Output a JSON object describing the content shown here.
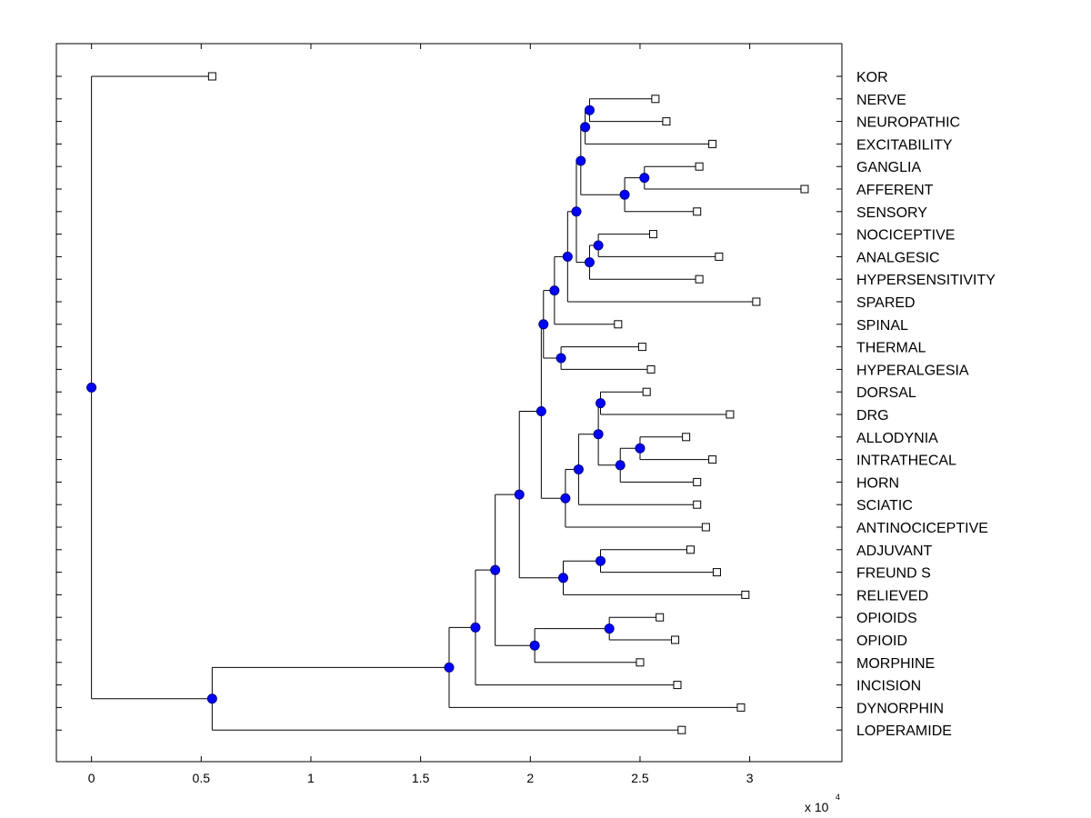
{
  "chart_data": {
    "type": "dendrogram",
    "x_scale_label": "x 10",
    "x_scale_exponent": "4",
    "x_multiplier": 10000,
    "xlim": [
      -0.16,
      3.42
    ],
    "xticks": [
      0,
      0.5,
      1,
      1.5,
      2,
      2.5,
      3
    ],
    "xtick_labels": [
      "0",
      "0.5",
      "1",
      "1.5",
      "2",
      "2.5",
      "3"
    ],
    "colors": {
      "node_fill": "#0000ff",
      "node_stroke": "#000080",
      "line": "#000000",
      "leaf_fill": "#ffffff"
    },
    "leaves": [
      {
        "label": "KOR",
        "x": 0.55
      },
      {
        "label": "NERVE",
        "x": 2.57
      },
      {
        "label": "NEUROPATHIC",
        "x": 2.62
      },
      {
        "label": "EXCITABILITY",
        "x": 2.83
      },
      {
        "label": "GANGLIA",
        "x": 2.77
      },
      {
        "label": "AFFERENT",
        "x": 3.25
      },
      {
        "label": "SENSORY",
        "x": 2.76
      },
      {
        "label": "NOCICEPTIVE",
        "x": 2.56
      },
      {
        "label": "ANALGESIC",
        "x": 2.86
      },
      {
        "label": "HYPERSENSITIVITY",
        "x": 2.77
      },
      {
        "label": "SPARED",
        "x": 3.03
      },
      {
        "label": "SPINAL",
        "x": 2.4
      },
      {
        "label": "THERMAL",
        "x": 2.51
      },
      {
        "label": "HYPERALGESIA",
        "x": 2.55
      },
      {
        "label": "DORSAL",
        "x": 2.53
      },
      {
        "label": "DRG",
        "x": 2.91
      },
      {
        "label": "ALLODYNIA",
        "x": 2.71
      },
      {
        "label": "INTRATHECAL",
        "x": 2.83
      },
      {
        "label": "HORN",
        "x": 2.76
      },
      {
        "label": "SCIATIC",
        "x": 2.76
      },
      {
        "label": "ANTINOCICEPTIVE",
        "x": 2.8
      },
      {
        "label": "ADJUVANT",
        "x": 2.73
      },
      {
        "label": "FREUND S",
        "x": 2.85
      },
      {
        "label": "RELIEVED",
        "x": 2.98
      },
      {
        "label": "OPIOIDS",
        "x": 2.59
      },
      {
        "label": "OPIOID",
        "x": 2.66
      },
      {
        "label": "MORPHINE",
        "x": 2.5
      },
      {
        "label": "INCISION",
        "x": 2.67
      },
      {
        "label": "DYNORPHIN",
        "x": 2.96
      },
      {
        "label": "LOPERAMIDE",
        "x": 2.69
      }
    ],
    "merges": [
      {
        "id": "n1",
        "x": 2.27,
        "children": [
          "NERVE",
          "NEUROPATHIC"
        ]
      },
      {
        "id": "n2",
        "x": 2.25,
        "children": [
          "n1",
          "EXCITABILITY"
        ]
      },
      {
        "id": "n3",
        "x": 2.52,
        "children": [
          "GANGLIA",
          "AFFERENT"
        ]
      },
      {
        "id": "n4",
        "x": 2.43,
        "children": [
          "n3",
          "SENSORY"
        ]
      },
      {
        "id": "n5",
        "x": 2.23,
        "children": [
          "n2",
          "n4"
        ]
      },
      {
        "id": "n6",
        "x": 2.31,
        "children": [
          "NOCICEPTIVE",
          "ANALGESIC"
        ]
      },
      {
        "id": "n7",
        "x": 2.27,
        "children": [
          "n6",
          "HYPERSENSITIVITY"
        ]
      },
      {
        "id": "n8",
        "x": 2.21,
        "children": [
          "n5",
          "n7"
        ]
      },
      {
        "id": "n9",
        "x": 2.17,
        "children": [
          "n8",
          "SPARED"
        ]
      },
      {
        "id": "n10",
        "x": 2.11,
        "children": [
          "n9",
          "SPINAL"
        ]
      },
      {
        "id": "n11",
        "x": 2.14,
        "children": [
          "THERMAL",
          "HYPERALGESIA"
        ]
      },
      {
        "id": "n12",
        "x": 2.06,
        "children": [
          "n10",
          "n11"
        ]
      },
      {
        "id": "n13",
        "x": 2.32,
        "children": [
          "DORSAL",
          "DRG"
        ]
      },
      {
        "id": "n14",
        "x": 2.5,
        "children": [
          "ALLODYNIA",
          "INTRATHECAL"
        ]
      },
      {
        "id": "n15",
        "x": 2.41,
        "children": [
          "n14",
          "HORN"
        ]
      },
      {
        "id": "n16",
        "x": 2.31,
        "children": [
          "n13",
          "n15"
        ]
      },
      {
        "id": "n17",
        "x": 2.22,
        "children": [
          "n16",
          "SCIATIC"
        ]
      },
      {
        "id": "n18",
        "x": 2.16,
        "children": [
          "n17",
          "ANTINOCICEPTIVE"
        ]
      },
      {
        "id": "n19",
        "x": 2.05,
        "children": [
          "n12",
          "n18"
        ]
      },
      {
        "id": "n20",
        "x": 2.32,
        "children": [
          "ADJUVANT",
          "FREUND S"
        ]
      },
      {
        "id": "n21",
        "x": 2.15,
        "children": [
          "n20",
          "RELIEVED"
        ]
      },
      {
        "id": "n22",
        "x": 1.95,
        "children": [
          "n19",
          "n21"
        ]
      },
      {
        "id": "n23",
        "x": 2.36,
        "children": [
          "OPIOIDS",
          "OPIOID"
        ]
      },
      {
        "id": "n24",
        "x": 2.02,
        "children": [
          "n23",
          "MORPHINE"
        ]
      },
      {
        "id": "n25",
        "x": 1.84,
        "children": [
          "n22",
          "n24"
        ]
      },
      {
        "id": "n26",
        "x": 1.75,
        "children": [
          "n25",
          "INCISION"
        ]
      },
      {
        "id": "n27",
        "x": 1.63,
        "children": [
          "n26",
          "DYNORPHIN"
        ]
      },
      {
        "id": "n28",
        "x": 0.55,
        "children": [
          "n27",
          "LOPERAMIDE"
        ]
      },
      {
        "id": "n29",
        "x": 0.0,
        "children": [
          "KOR",
          "n28"
        ]
      }
    ]
  }
}
